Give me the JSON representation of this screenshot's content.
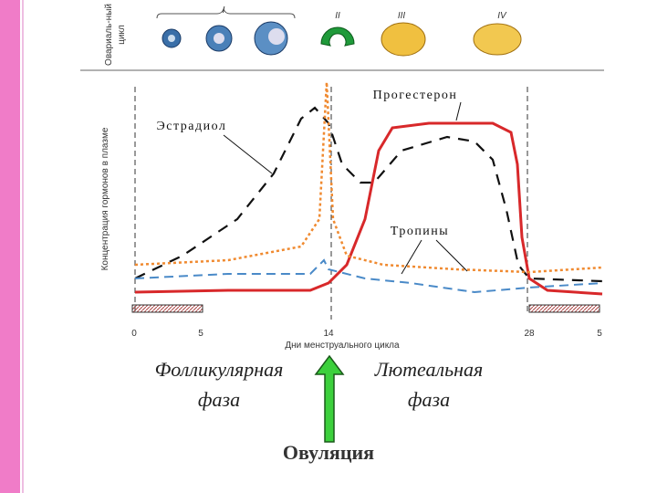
{
  "ovarian_cycle": {
    "label_lines": [
      "Овариаль-ный",
      "цикл"
    ],
    "stages": [
      "I",
      "II",
      "III",
      "IV"
    ]
  },
  "chart": {
    "y_label": "Концентрация гормонов в плазме",
    "x_label": "Дни менструального цикла",
    "x_ticks": [
      "0",
      "5",
      "14",
      "28",
      "5"
    ],
    "curve_labels": {
      "progesterone": "Прогестерон",
      "estradiol": "Эстрадиол",
      "tropins": "Тропины"
    }
  },
  "phases": {
    "follicular": [
      "Фолликулярная",
      "фаза"
    ],
    "luteal": [
      "Лютеальная",
      "фаза"
    ],
    "ovulation": "Овуляция"
  }
}
